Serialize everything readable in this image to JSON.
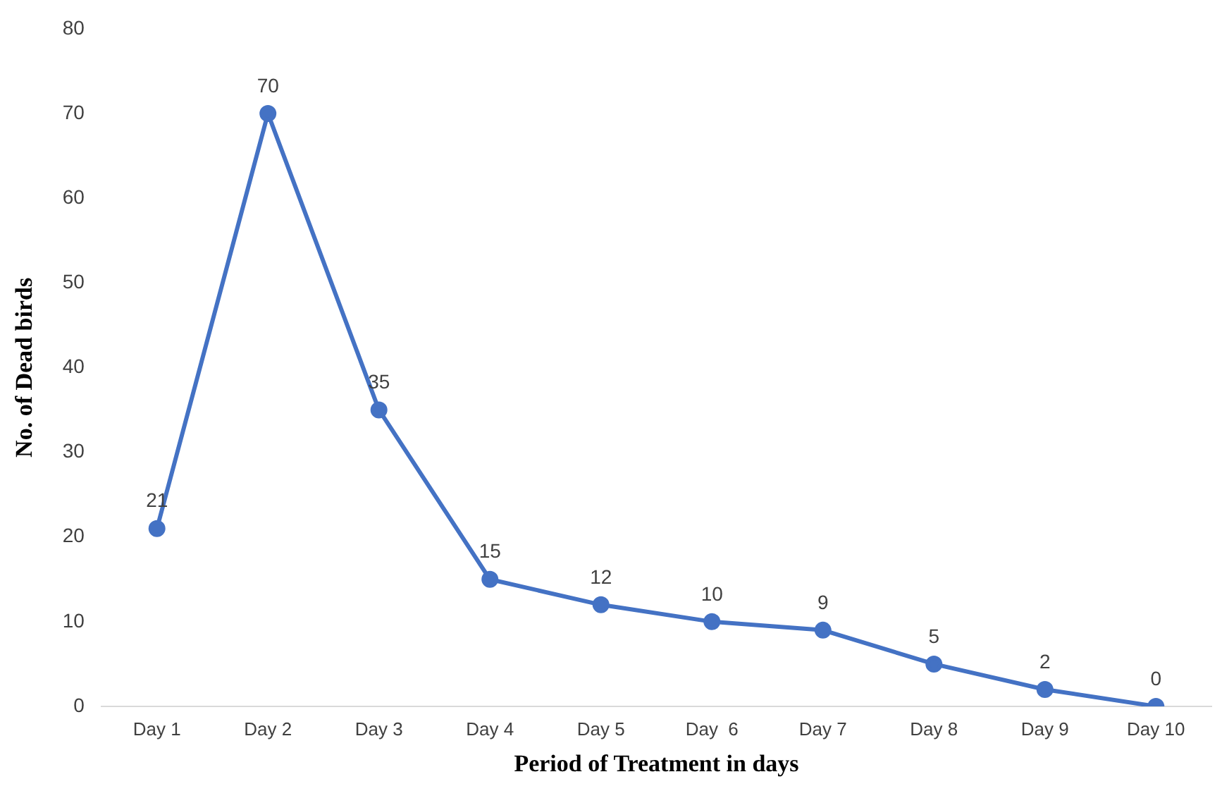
{
  "chart_data": {
    "type": "line",
    "xlabel": "Period of Treatment in days",
    "ylabel": "No. of Dead birds",
    "categories": [
      "Day 1",
      "Day 2",
      "Day 3",
      "Day 4",
      "Day 5",
      "Day  6",
      "Day 7",
      "Day 8",
      "Day 9",
      "Day 10"
    ],
    "series": [
      {
        "color": "#4472c4",
        "values": [
          21,
          70,
          35,
          15,
          12,
          10,
          9,
          5,
          2,
          0
        ]
      }
    ],
    "ylim": [
      0,
      80
    ],
    "yticks": [
      0,
      10,
      20,
      30,
      40,
      50,
      60,
      70,
      80
    ],
    "grid": false,
    "marker": "circle",
    "line_style": "solid",
    "data_labels": true
  }
}
